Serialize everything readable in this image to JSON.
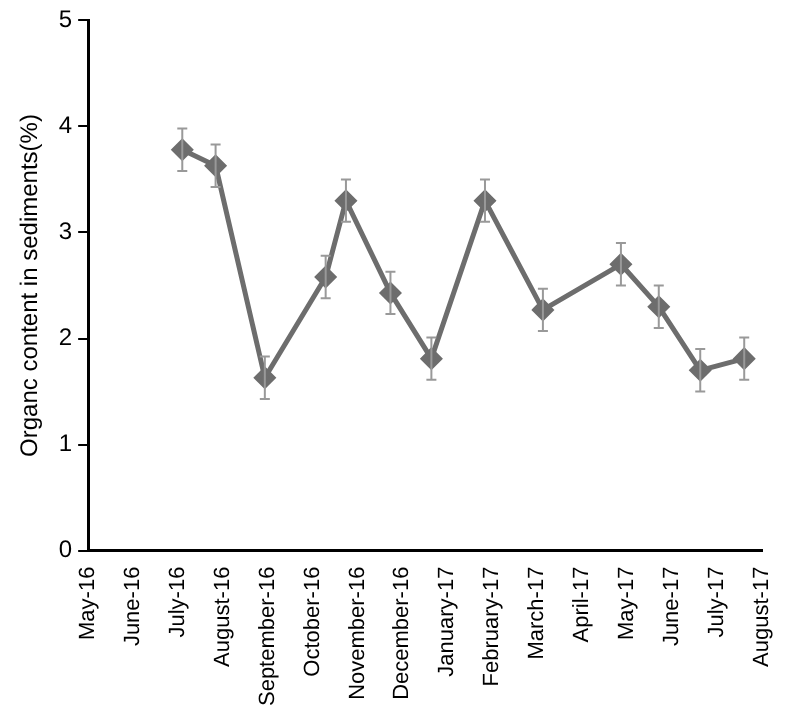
{
  "chart_data": {
    "type": "line",
    "ylabel": "Organc content in sediments(%)",
    "x": [
      "2016-07-04",
      "2016-07-27",
      "2016-08-30",
      "2016-10-10",
      "2016-10-24",
      "2016-11-23",
      "2016-12-21",
      "2017-01-27",
      "2017-03-05",
      "2017-04-27",
      "2017-05-23",
      "2017-06-20",
      "2017-07-20"
    ],
    "values": [
      3.78,
      3.63,
      1.63,
      2.58,
      3.3,
      2.43,
      1.81,
      3.3,
      2.27,
      2.7,
      2.3,
      1.7,
      1.81
    ],
    "errors": [
      0.2,
      0.2,
      0.2,
      0.2,
      0.2,
      0.2,
      0.2,
      0.2,
      0.2,
      0.2,
      0.2,
      0.2,
      0.2
    ],
    "color": "#6d6d6d",
    "marker": "diamond",
    "grid": false,
    "legend": false,
    "xlim": [
      "2016-05",
      "2017-08"
    ],
    "xticks": [
      {
        "value": "2016-05",
        "label": "May-16"
      },
      {
        "value": "2016-06",
        "label": "June-16"
      },
      {
        "value": "2016-07",
        "label": "July-16"
      },
      {
        "value": "2016-08",
        "label": "August-16"
      },
      {
        "value": "2016-09",
        "label": "September-16"
      },
      {
        "value": "2016-10",
        "label": "October-16"
      },
      {
        "value": "2016-11",
        "label": "November-16"
      },
      {
        "value": "2016-12",
        "label": "December-16"
      },
      {
        "value": "2017-01",
        "label": "January-17"
      },
      {
        "value": "2017-02",
        "label": "February-17"
      },
      {
        "value": "2017-03",
        "label": "March-17"
      },
      {
        "value": "2017-04",
        "label": "April-17"
      },
      {
        "value": "2017-05",
        "label": "May-17"
      },
      {
        "value": "2017-06",
        "label": "June-17"
      },
      {
        "value": "2017-07",
        "label": "July-17"
      },
      {
        "value": "2017-08",
        "label": "August-17"
      }
    ],
    "ylim": [
      0,
      5
    ],
    "yticks": [
      0,
      1,
      2,
      3,
      4,
      5
    ]
  }
}
